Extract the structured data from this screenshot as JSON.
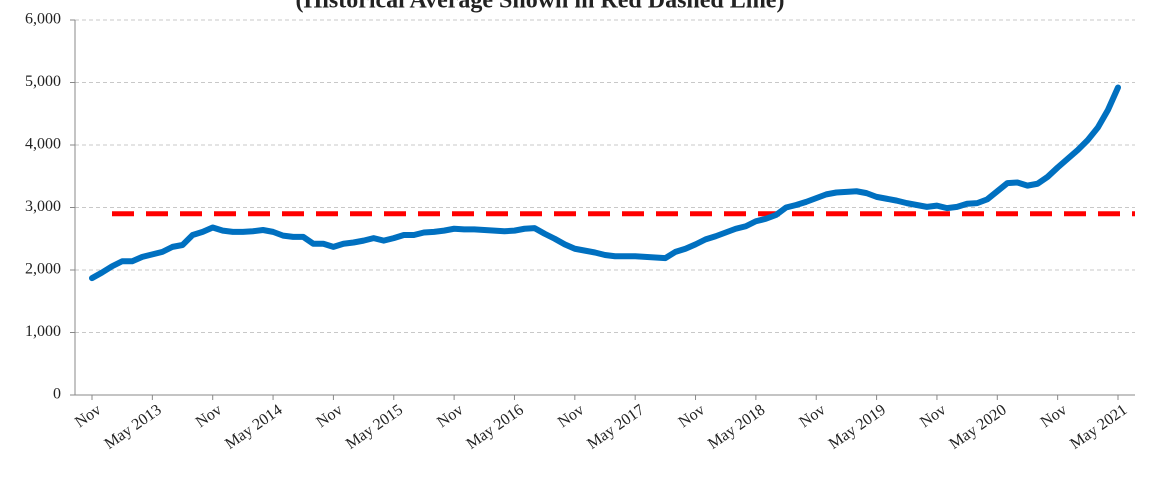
{
  "chart_data": {
    "type": "line",
    "title": "(Historical Average Shown in Red Dashed Line)",
    "categories": [
      "Nov",
      null,
      null,
      null,
      null,
      null,
      "May 2013",
      null,
      null,
      null,
      null,
      null,
      "Nov",
      null,
      null,
      null,
      null,
      null,
      "May 2014",
      null,
      null,
      null,
      null,
      null,
      "Nov",
      null,
      null,
      null,
      null,
      null,
      "May 2015",
      null,
      null,
      null,
      null,
      null,
      "Nov",
      null,
      null,
      null,
      null,
      null,
      "May 2016",
      null,
      null,
      null,
      null,
      null,
      "Nov",
      null,
      null,
      null,
      null,
      null,
      "May 2017",
      null,
      null,
      null,
      null,
      null,
      "Nov",
      null,
      null,
      null,
      null,
      null,
      "May 2018",
      null,
      null,
      null,
      null,
      null,
      "Nov",
      null,
      null,
      null,
      null,
      null,
      "May 2019",
      null,
      null,
      null,
      null,
      null,
      "Nov",
      null,
      null,
      null,
      null,
      null,
      "May 2020",
      null,
      null,
      null,
      null,
      null,
      "Nov",
      null,
      null,
      null,
      null,
      null,
      "May 2021"
    ],
    "series": [
      {
        "color": "#0070c0",
        "values": [
          1870,
          1960,
          2060,
          2140,
          2140,
          2210,
          2250,
          2290,
          2370,
          2400,
          2560,
          2610,
          2680,
          2630,
          2610,
          2610,
          2620,
          2640,
          2610,
          2550,
          2530,
          2530,
          2420,
          2420,
          2370,
          2420,
          2440,
          2470,
          2510,
          2470,
          2510,
          2560,
          2560,
          2600,
          2610,
          2630,
          2660,
          2650,
          2650,
          2640,
          2630,
          2620,
          2630,
          2660,
          2670,
          2580,
          2500,
          2410,
          2340,
          2310,
          2280,
          2240,
          2220,
          2220,
          2220,
          2210,
          2200,
          2190,
          2290,
          2340,
          2410,
          2490,
          2540,
          2600,
          2660,
          2700,
          2780,
          2820,
          2880,
          3000,
          3040,
          3090,
          3150,
          3210,
          3240,
          3250,
          3260,
          3230,
          3170,
          3140,
          3110,
          3070,
          3040,
          3010,
          3030,
          2990,
          3010,
          3060,
          3070,
          3130,
          3260,
          3390,
          3400,
          3350,
          3380,
          3490,
          3640,
          3780,
          3920,
          4080,
          4280,
          4560,
          4920
        ]
      }
    ],
    "reference_line": {
      "value": 2900,
      "color": "#ff0000",
      "dashed": true
    },
    "ylim": [
      0,
      6000
    ],
    "yticks": [
      0,
      {
        "value": 1000,
        "label": "1,000"
      },
      {
        "value": 2000,
        "label": "2,000"
      },
      {
        "value": 3000,
        "label": "3,000"
      },
      {
        "value": 4000,
        "label": "4,000"
      },
      {
        "value": 5000,
        "label": "5,000"
      },
      {
        "value": 6000,
        "label": "6,000"
      }
    ],
    "grid": true
  }
}
